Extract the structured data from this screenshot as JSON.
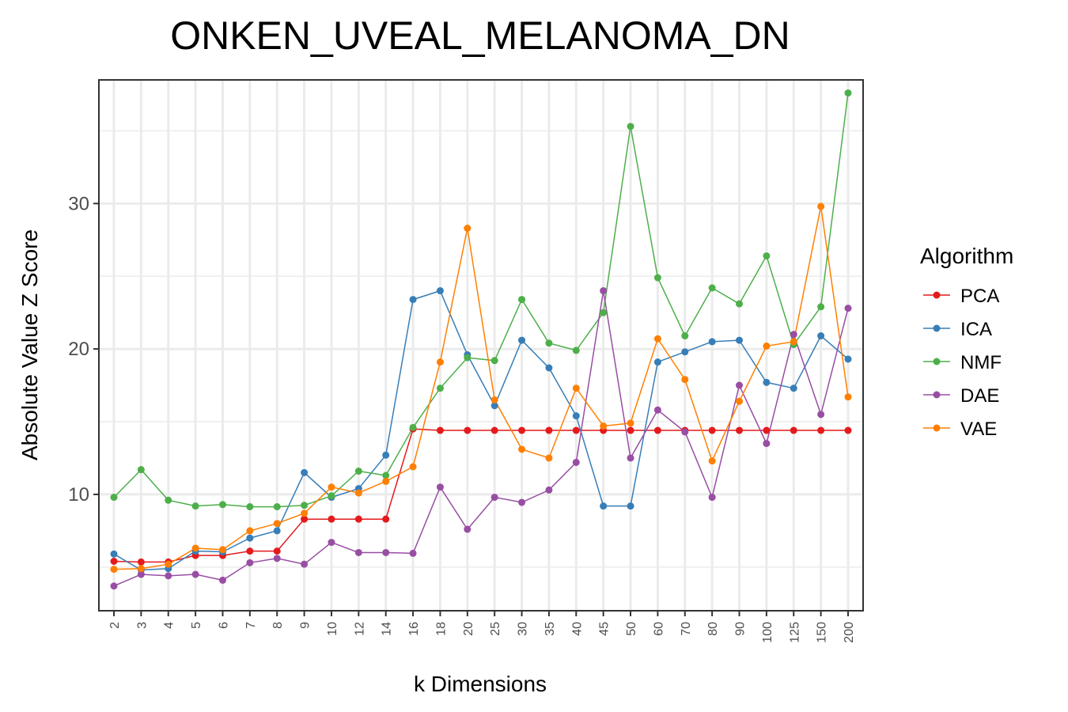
{
  "chart_data": {
    "type": "line",
    "title": "ONKEN_UVEAL_MELANOMA_DN",
    "xlabel": "k Dimensions",
    "ylabel": "Absolute Value Z Score",
    "categories": [
      "2",
      "3",
      "4",
      "5",
      "6",
      "7",
      "8",
      "9",
      "10",
      "12",
      "14",
      "16",
      "18",
      "20",
      "25",
      "30",
      "35",
      "40",
      "45",
      "50",
      "60",
      "70",
      "80",
      "90",
      "100",
      "125",
      "150",
      "200"
    ],
    "ylim": [
      2,
      38.5
    ],
    "yticks": [
      10,
      20,
      30
    ],
    "grid": true,
    "legend": {
      "title": "Algorithm",
      "position": "right"
    },
    "series": [
      {
        "name": "PCA",
        "color": "#e41a1c",
        "values": [
          5.4,
          5.35,
          5.35,
          5.8,
          5.8,
          6.1,
          6.1,
          8.3,
          8.3,
          8.3,
          8.3,
          14.5,
          14.4,
          14.4,
          14.4,
          14.4,
          14.4,
          14.4,
          14.4,
          14.4,
          14.4,
          14.4,
          14.4,
          14.4,
          14.4,
          14.4,
          14.4,
          14.4
        ]
      },
      {
        "name": "ICA",
        "color": "#377eb8",
        "values": [
          5.9,
          4.8,
          4.9,
          6.1,
          6.05,
          7.0,
          7.5,
          11.5,
          9.8,
          10.4,
          12.7,
          23.4,
          24.0,
          19.6,
          16.1,
          20.6,
          18.7,
          15.4,
          9.2,
          9.2,
          19.1,
          19.8,
          20.5,
          20.6,
          17.7,
          17.3,
          20.9,
          19.3
        ]
      },
      {
        "name": "NMF",
        "color": "#4daf4a",
        "values": [
          9.8,
          11.7,
          9.6,
          9.2,
          9.3,
          9.15,
          9.15,
          9.25,
          9.9,
          11.6,
          11.3,
          14.6,
          17.3,
          19.4,
          19.2,
          23.4,
          20.4,
          19.9,
          22.5,
          35.3,
          24.9,
          20.9,
          24.2,
          23.1,
          26.4,
          20.3,
          22.9,
          37.6
        ]
      },
      {
        "name": "DAE",
        "color": "#984ea3",
        "values": [
          3.7,
          4.5,
          4.4,
          4.5,
          4.1,
          5.3,
          5.6,
          5.2,
          6.7,
          6.0,
          6.0,
          5.95,
          10.5,
          7.6,
          9.8,
          9.45,
          10.3,
          12.2,
          24.0,
          12.5,
          15.8,
          14.3,
          9.8,
          17.5,
          13.5,
          21.0,
          15.5,
          22.8
        ]
      },
      {
        "name": "VAE",
        "color": "#ff7f00",
        "values": [
          4.85,
          4.9,
          5.2,
          6.3,
          6.2,
          7.5,
          8.0,
          8.7,
          10.5,
          10.1,
          10.9,
          11.9,
          19.1,
          28.3,
          16.5,
          13.1,
          12.5,
          17.3,
          14.7,
          14.9,
          20.7,
          17.9,
          12.3,
          16.4,
          20.2,
          20.5,
          29.8,
          16.7
        ]
      }
    ]
  }
}
